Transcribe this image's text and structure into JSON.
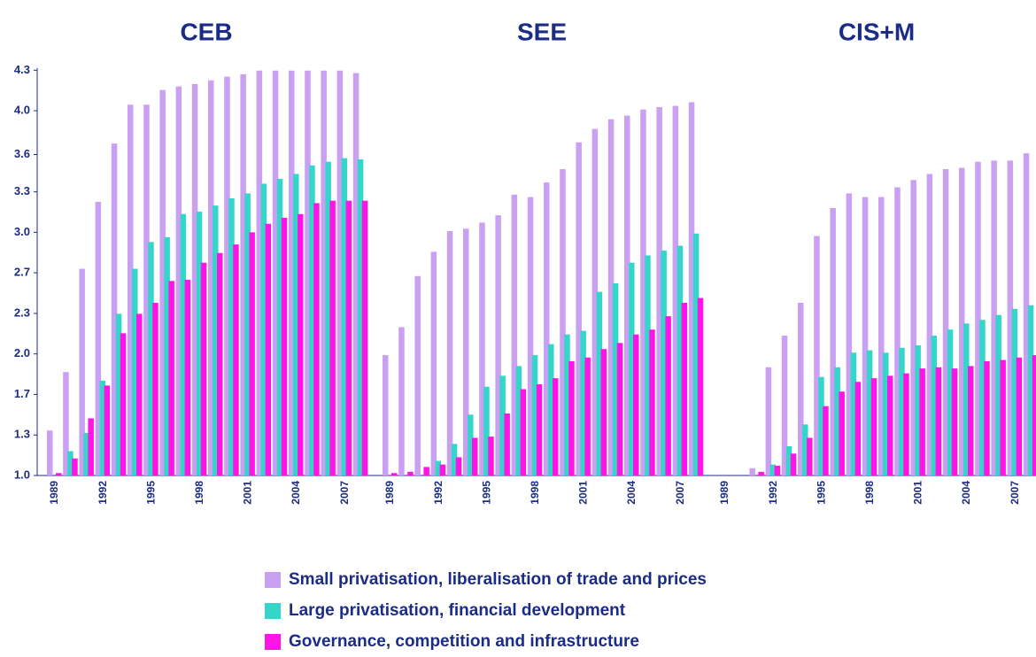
{
  "chart_data": [
    {
      "type": "bar",
      "title": "CEB",
      "categories": [
        "1989",
        null,
        null,
        "1992",
        null,
        null,
        "1995",
        null,
        null,
        "1998",
        null,
        null,
        "2001",
        null,
        null,
        "2004",
        null,
        null,
        "2007",
        null
      ],
      "ylim": [
        1.0,
        4.35
      ],
      "yticks": [
        {
          "value": 1.0,
          "label": "1.0"
        },
        {
          "value": 1.333,
          "label": "1.3"
        },
        {
          "value": 1.667,
          "label": "1.7"
        },
        {
          "value": 2.0,
          "label": "2.0"
        },
        {
          "value": 2.333,
          "label": "2.3"
        },
        {
          "value": 2.667,
          "label": "2.7"
        },
        {
          "value": 3.0,
          "label": "3.0"
        },
        {
          "value": 3.333,
          "label": "3.3"
        },
        {
          "value": 3.64,
          "label": "3.6"
        },
        {
          "value": 4.0,
          "label": "4.0"
        },
        {
          "value": 4.333,
          "label": "4.3"
        }
      ],
      "series": [
        {
          "name": "Small privatisation, liberalisation of trade and prices",
          "color": "#c9a0f2",
          "values": [
            1.37,
            1.85,
            2.7,
            3.25,
            3.73,
            4.05,
            4.05,
            4.17,
            4.2,
            4.22,
            4.25,
            4.28,
            4.3,
            4.33,
            4.33,
            4.33,
            4.33,
            4.33,
            4.33,
            4.31
          ]
        },
        {
          "name": "Large privatisation, financial development",
          "color": "#33d6c8",
          "values": [
            1.0,
            1.2,
            1.35,
            1.78,
            2.33,
            2.7,
            2.92,
            2.96,
            3.15,
            3.17,
            3.22,
            3.28,
            3.32,
            3.4,
            3.44,
            3.48,
            3.55,
            3.58,
            3.61,
            3.6
          ]
        },
        {
          "name": "Governance, competition and infrastructure",
          "color": "#ff14e6",
          "values": [
            1.02,
            1.14,
            1.47,
            1.74,
            2.17,
            2.33,
            2.42,
            2.6,
            2.61,
            2.75,
            2.83,
            2.9,
            3.0,
            3.07,
            3.12,
            3.15,
            3.24,
            3.26,
            3.26,
            3.26
          ]
        }
      ]
    },
    {
      "type": "bar",
      "title": "SEE",
      "categories": [
        "1989",
        null,
        null,
        "1992",
        null,
        null,
        "1995",
        null,
        null,
        "1998",
        null,
        null,
        "2001",
        null,
        null,
        "2004",
        null,
        null,
        "2007",
        null
      ],
      "ylim": [
        1.0,
        4.35
      ],
      "series": [
        {
          "color": "#c9a0f2",
          "values": [
            1.99,
            2.22,
            2.64,
            2.84,
            3.01,
            3.03,
            3.08,
            3.14,
            3.31,
            3.29,
            3.41,
            3.52,
            3.74,
            3.85,
            3.93,
            3.96,
            4.01,
            4.03,
            4.04,
            4.07
          ]
        },
        {
          "color": "#33d6c8",
          "values": [
            1.0,
            1.0,
            1.0,
            1.12,
            1.26,
            1.5,
            1.73,
            1.82,
            1.9,
            1.99,
            2.08,
            2.16,
            2.19,
            2.51,
            2.58,
            2.75,
            2.81,
            2.85,
            2.89,
            2.99
          ]
        },
        {
          "color": "#ff14e6",
          "values": [
            1.02,
            1.03,
            1.07,
            1.09,
            1.15,
            1.31,
            1.32,
            1.51,
            1.71,
            1.75,
            1.8,
            1.94,
            1.97,
            2.04,
            2.09,
            2.16,
            2.2,
            2.31,
            2.42,
            2.46
          ]
        }
      ]
    },
    {
      "type": "bar",
      "title": "CIS+M",
      "categories": [
        "1989",
        null,
        null,
        "1992",
        null,
        null,
        "1995",
        null,
        null,
        "1998",
        null,
        null,
        "2001",
        null,
        null,
        "2004",
        null,
        null,
        "2007",
        null
      ],
      "ylim": [
        1.0,
        4.35
      ],
      "series": [
        {
          "color": "#c9a0f2",
          "values": [
            null,
            null,
            1.06,
            1.89,
            2.15,
            2.42,
            2.97,
            3.2,
            3.32,
            3.29,
            3.29,
            3.37,
            3.43,
            3.48,
            3.52,
            3.53,
            3.58,
            3.59,
            3.59,
            3.65
          ]
        },
        {
          "color": "#33d6c8",
          "values": [
            null,
            null,
            1.0,
            1.09,
            1.24,
            1.42,
            1.81,
            1.89,
            2.01,
            2.03,
            2.01,
            2.05,
            2.07,
            2.15,
            2.2,
            2.25,
            2.28,
            2.32,
            2.37,
            2.4
          ]
        },
        {
          "color": "#ff14e6",
          "values": [
            null,
            null,
            1.03,
            1.08,
            1.18,
            1.31,
            1.57,
            1.69,
            1.77,
            1.8,
            1.82,
            1.84,
            1.88,
            1.89,
            1.88,
            1.9,
            1.94,
            1.95,
            1.97,
            1.99
          ]
        }
      ]
    }
  ]
}
